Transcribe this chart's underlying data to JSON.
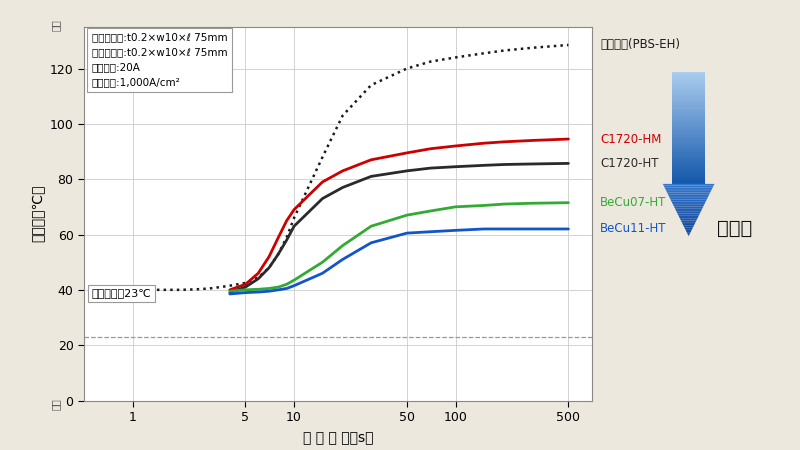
{
  "bg_color": "#ede8de",
  "plot_bg_color": "#ffffff",
  "annotation_box_text": "試験片形状:t0.2×w10×ℓ 75mm\n発熱有効部:t0.2×w10×ℓ 75mm\n通電電流:20A\n電流密度:1,000A/cm²",
  "ambient_text": "周囲温度　23℃",
  "ambient_y": 23,
  "xlabel": "通 電 時 間（s）",
  "ylabel": "温　度（℃）",
  "ylim": [
    0,
    135
  ],
  "yticks": [
    0,
    20,
    40,
    60,
    80,
    100,
    120
  ],
  "xticks_log": [
    1,
    5,
    10,
    50,
    100,
    500
  ],
  "grid_color": "#cccccc",
  "series": [
    {
      "label": "りん青銅(PBS-EH)",
      "color": "#1a1a1a",
      "linestyle": "dotted",
      "linewidth": 1.8,
      "x": [
        0.55,
        0.8,
        1,
        1.5,
        2,
        2.5,
        3,
        3.5,
        4,
        5,
        6,
        7,
        8,
        9,
        10,
        15,
        20,
        30,
        50,
        70,
        100,
        150,
        200,
        300,
        500
      ],
      "y": [
        40,
        40,
        40,
        40,
        40,
        40.2,
        40.5,
        41,
        41.5,
        42.5,
        44.5,
        48,
        53,
        59,
        66,
        88,
        103,
        114,
        120,
        122.5,
        124,
        125.5,
        126.5,
        127.5,
        128.5
      ]
    },
    {
      "label": "C1720-HM",
      "color": "#cc0000",
      "linestyle": "solid",
      "linewidth": 2.0,
      "x": [
        4,
        5,
        6,
        7,
        8,
        9,
        10,
        15,
        20,
        30,
        50,
        70,
        100,
        150,
        200,
        300,
        500
      ],
      "y": [
        40,
        42,
        46,
        52,
        59,
        65,
        69,
        79,
        83,
        87,
        89.5,
        91,
        92,
        93,
        93.5,
        94,
        94.5
      ]
    },
    {
      "label": "C1720-HT",
      "color": "#2a2a2a",
      "linestyle": "solid",
      "linewidth": 2.0,
      "x": [
        4,
        5,
        6,
        7,
        8,
        9,
        10,
        15,
        20,
        30,
        50,
        70,
        100,
        150,
        200,
        300,
        500
      ],
      "y": [
        39,
        41,
        44,
        48,
        53,
        58,
        63,
        73,
        77,
        81,
        83,
        84,
        84.5,
        85,
        85.3,
        85.5,
        85.7
      ]
    },
    {
      "label": "BeCu07-HT",
      "color": "#33aa33",
      "linestyle": "solid",
      "linewidth": 2.0,
      "x": [
        4,
        5,
        6,
        7,
        8,
        9,
        10,
        15,
        20,
        30,
        50,
        70,
        100,
        150,
        200,
        300,
        500
      ],
      "y": [
        39.5,
        40,
        40.2,
        40.5,
        41,
        42,
        43.5,
        50,
        56,
        63,
        67,
        68.5,
        70,
        70.5,
        71,
        71.3,
        71.5
      ]
    },
    {
      "label": "BeCu11-HT",
      "color": "#1155cc",
      "linestyle": "solid",
      "linewidth": 2.0,
      "x": [
        4,
        5,
        6,
        7,
        8,
        9,
        10,
        15,
        20,
        30,
        50,
        70,
        100,
        150,
        200,
        300,
        500
      ],
      "y": [
        38.5,
        39,
        39.2,
        39.5,
        40,
        40.5,
        41.5,
        46,
        51,
        57,
        60.5,
        61,
        61.5,
        62,
        62,
        62,
        62
      ]
    }
  ],
  "label_info": [
    [
      "りん青銅(PBS-EH)",
      "#1a1a1a",
      128.5
    ],
    [
      "C1720-HM",
      "#cc0000",
      94.5
    ],
    [
      "C1720-HT",
      "#2a2a2a",
      85.7
    ],
    [
      "BeCu07-HT",
      "#33aa33",
      71.5
    ],
    [
      "BeCu11-HT",
      "#1155cc",
      62
    ]
  ],
  "low_heat_text": "低発熱",
  "arrow_color_top": "#aaccee",
  "arrow_color_bottom": "#1155aa"
}
